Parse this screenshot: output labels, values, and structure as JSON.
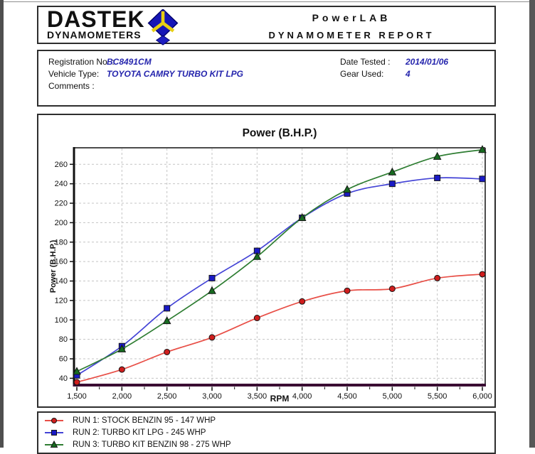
{
  "header": {
    "logo_line1": "DASTEK",
    "logo_line2": "DYNAMOMETERS",
    "title_line1": "PowerLAB",
    "title_line2": "DYNAMOMETER REPORT"
  },
  "info": {
    "registration_label": "Registration No. :",
    "registration_value": "BC8491CM",
    "vehicle_label": "Vehicle Type:",
    "vehicle_value": "TOYOTA CAMRY TURBO KIT LPG",
    "comments_label": "Comments :",
    "date_label": "Date Tested :",
    "date_value": "2014/01/06",
    "gear_label": "Gear Used:",
    "gear_value": "4"
  },
  "chart_data": {
    "type": "line",
    "title": "Power (B.H.P.)",
    "xlabel": "RPM",
    "ylabel": "Power (B.H.P.)",
    "x": [
      1500,
      2000,
      2500,
      3000,
      3500,
      4000,
      4500,
      5000,
      5500,
      6000
    ],
    "xtick_labels": [
      "1,500",
      "2,000",
      "2,500",
      "3,000",
      "3,500",
      "4,000",
      "4,500",
      "5,000",
      "5,500",
      "6,000"
    ],
    "yticks": [
      40,
      60,
      80,
      100,
      120,
      140,
      160,
      180,
      200,
      220,
      240,
      260
    ],
    "xlim": [
      1500,
      6000
    ],
    "ylim": [
      33,
      277
    ],
    "minor_xtick_step": 250,
    "grid": "dashed",
    "legend_position": "bottom",
    "series": [
      {
        "name": "RUN 1: STOCK BENZIN 95 - 147 WHP",
        "marker": "circle",
        "line_color": "#e84f47",
        "marker_color": "#cf1d1d",
        "values": [
          36,
          49,
          67,
          82,
          102,
          119,
          130,
          132,
          143,
          147
        ]
      },
      {
        "name": "RUN 2: TURBO KIT LPG - 245 WHP",
        "marker": "square",
        "line_color": "#4343d6",
        "marker_color": "#1a1ac6",
        "values": [
          43,
          73,
          112,
          143,
          171,
          205,
          230,
          240,
          246,
          245
        ]
      },
      {
        "name": "RUN 3: TURBO KIT BENZIN 98 - 275 WHP",
        "marker": "triangle",
        "line_color": "#2e7d32",
        "marker_color": "#176b20",
        "values": [
          47,
          70,
          99,
          130,
          165,
          205,
          234,
          252,
          268,
          275
        ]
      }
    ],
    "colors": {
      "grid": "#c4c4c4",
      "axis": "#111111",
      "axis_bottom": "#3a0d33",
      "value_text": "#2525ad"
    }
  }
}
